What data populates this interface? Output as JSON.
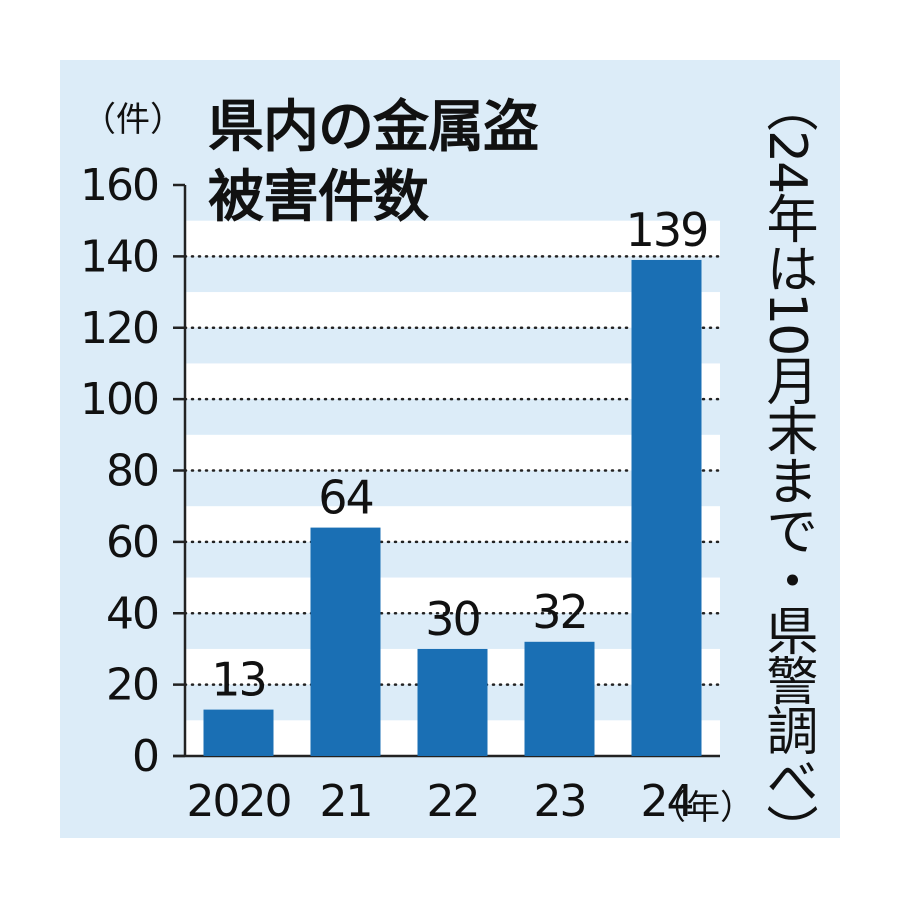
{
  "title_lines": [
    "県内の金属盗",
    "被害件数"
  ],
  "y_unit": "（件）",
  "x_unit": "（年）",
  "source_note": "（24年は10月末まで・県警調べ）",
  "colors": {
    "panel": "#dcecf8",
    "stripe": "#ffffff",
    "bar": "#1a6fb4",
    "text": "#111111"
  },
  "chart_data": {
    "type": "bar",
    "title": "県内の金属盗被害件数",
    "categories": [
      "2020",
      "21",
      "22",
      "23",
      "24"
    ],
    "values": [
      13,
      64,
      30,
      32,
      139
    ],
    "data_labels": [
      "13",
      "64",
      "30",
      "32",
      "139"
    ],
    "y_ticks": [
      "0",
      "20",
      "40",
      "60",
      "80",
      "100",
      "120",
      "140",
      "160"
    ],
    "ylim": [
      0,
      160
    ],
    "xlabel": "",
    "ylabel": "（件）",
    "grid": true
  }
}
